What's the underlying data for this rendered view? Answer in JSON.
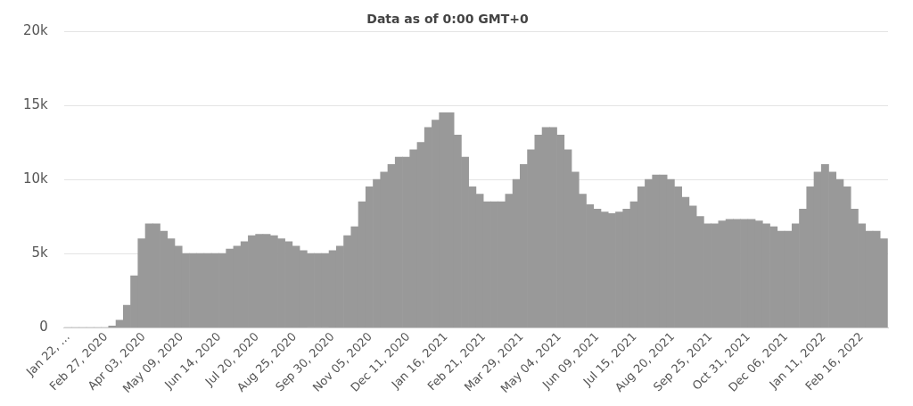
{
  "chart_data": {
    "type": "bar",
    "title": "Data as of 0:00 GMT+0",
    "x": [
      "2020-01-22",
      "2020-01-29",
      "2020-02-05",
      "2020-02-12",
      "2020-02-19",
      "2020-02-26",
      "2020-03-04",
      "2020-03-11",
      "2020-03-18",
      "2020-03-25",
      "2020-04-01",
      "2020-04-08",
      "2020-04-15",
      "2020-04-22",
      "2020-04-29",
      "2020-05-06",
      "2020-05-13",
      "2020-05-20",
      "2020-05-27",
      "2020-06-03",
      "2020-06-10",
      "2020-06-17",
      "2020-06-24",
      "2020-07-01",
      "2020-07-08",
      "2020-07-15",
      "2020-07-22",
      "2020-07-29",
      "2020-08-05",
      "2020-08-12",
      "2020-08-19",
      "2020-08-26",
      "2020-09-02",
      "2020-09-09",
      "2020-09-16",
      "2020-09-23",
      "2020-09-30",
      "2020-10-07",
      "2020-10-14",
      "2020-10-21",
      "2020-10-28",
      "2020-11-04",
      "2020-11-11",
      "2020-11-18",
      "2020-11-25",
      "2020-12-02",
      "2020-12-09",
      "2020-12-16",
      "2020-12-23",
      "2020-12-30",
      "2021-01-06",
      "2021-01-13",
      "2021-01-20",
      "2021-01-27",
      "2021-02-03",
      "2021-02-10",
      "2021-02-17",
      "2021-02-24",
      "2021-03-03",
      "2021-03-10",
      "2021-03-17",
      "2021-03-24",
      "2021-03-31",
      "2021-04-07",
      "2021-04-14",
      "2021-04-21",
      "2021-04-28",
      "2021-05-05",
      "2021-05-12",
      "2021-05-19",
      "2021-05-26",
      "2021-06-02",
      "2021-06-09",
      "2021-06-16",
      "2021-06-23",
      "2021-06-30",
      "2021-07-07",
      "2021-07-14",
      "2021-07-21",
      "2021-07-28",
      "2021-08-04",
      "2021-08-11",
      "2021-08-18",
      "2021-08-25",
      "2021-09-01",
      "2021-09-08",
      "2021-09-15",
      "2021-09-22",
      "2021-09-29",
      "2021-10-06",
      "2021-10-13",
      "2021-10-20",
      "2021-10-27",
      "2021-11-03",
      "2021-11-10",
      "2021-11-17",
      "2021-11-24",
      "2021-12-01",
      "2021-12-08",
      "2021-12-15",
      "2021-12-22",
      "2021-12-29",
      "2022-01-05",
      "2022-01-12",
      "2022-01-19",
      "2022-01-26",
      "2022-02-02",
      "2022-02-09",
      "2022-02-16",
      "2022-02-23",
      "2022-03-02",
      "2022-03-09"
    ],
    "series": [
      {
        "color": "#999999",
        "values": [
          0,
          0,
          0,
          0,
          0,
          0,
          100,
          500,
          1500,
          3500,
          6000,
          7000,
          7000,
          6500,
          6000,
          5500,
          5000,
          5000,
          5000,
          5000,
          5000,
          5000,
          5300,
          5500,
          5800,
          6200,
          6300,
          6300,
          6200,
          6000,
          5800,
          5500,
          5200,
          5000,
          5000,
          5000,
          5200,
          5500,
          6200,
          6800,
          8500,
          9500,
          10000,
          10500,
          11000,
          11500,
          11500,
          12000,
          12500,
          13500,
          14000,
          14500,
          14500,
          13000,
          11500,
          9500,
          9000,
          8500,
          8500,
          8500,
          9000,
          10000,
          11000,
          12000,
          13000,
          13500,
          13500,
          13000,
          12000,
          10500,
          9000,
          8300,
          8000,
          7800,
          7700,
          7800,
          8000,
          8500,
          9500,
          10000,
          10300,
          10300,
          10000,
          9500,
          8800,
          8200,
          7500,
          7000,
          7000,
          7200,
          7300,
          7300,
          7300,
          7300,
          7200,
          7000,
          6800,
          6500,
          6500,
          7000,
          8000,
          9500,
          10500,
          11000,
          10500,
          10000,
          9500,
          8000,
          7000,
          6500,
          6500,
          6000
        ]
      }
    ],
    "xlim": [
      "2020-01-18",
      "2022-03-13"
    ],
    "xticks": [
      {
        "value": "2020-01-22",
        "label": "Jan 22, …"
      },
      {
        "value": "2020-02-27",
        "label": "Feb 27, 2020"
      },
      {
        "value": "2020-04-03",
        "label": "Apr 03, 2020"
      },
      {
        "value": "2020-05-09",
        "label": "May 09, 2020"
      },
      {
        "value": "2020-06-14",
        "label": "Jun 14, 2020"
      },
      {
        "value": "2020-07-20",
        "label": "Jul 20, 2020"
      },
      {
        "value": "2020-08-25",
        "label": "Aug 25, 2020"
      },
      {
        "value": "2020-09-30",
        "label": "Sep 30, 2020"
      },
      {
        "value": "2020-11-05",
        "label": "Nov 05, 2020"
      },
      {
        "value": "2020-12-11",
        "label": "Dec 11, 2020"
      },
      {
        "value": "2021-01-16",
        "label": "Jan 16, 2021"
      },
      {
        "value": "2021-02-21",
        "label": "Feb 21, 2021"
      },
      {
        "value": "2021-03-29",
        "label": "Mar 29, 2021"
      },
      {
        "value": "2021-05-04",
        "label": "May 04, 2021"
      },
      {
        "value": "2021-06-09",
        "label": "Jun 09, 2021"
      },
      {
        "value": "2021-07-15",
        "label": "Jul 15, 2021"
      },
      {
        "value": "2021-08-20",
        "label": "Aug 20, 2021"
      },
      {
        "value": "2021-09-25",
        "label": "Sep 25, 2021"
      },
      {
        "value": "2021-10-31",
        "label": "Oct 31, 2021"
      },
      {
        "value": "2021-12-06",
        "label": "Dec 06, 2021"
      },
      {
        "value": "2022-01-11",
        "label": "Jan 11, 2022"
      },
      {
        "value": "2022-02-16",
        "label": "Feb 16, 2022"
      }
    ],
    "ylim": [
      0,
      20000
    ],
    "yticks": [
      {
        "value": 0,
        "label": "0"
      },
      {
        "value": 5000,
        "label": "5k"
      },
      {
        "value": 10000,
        "label": "10k"
      },
      {
        "value": 15000,
        "label": "15k"
      },
      {
        "value": 20000,
        "label": "20k"
      }
    ],
    "grid": "y",
    "legend": false
  }
}
